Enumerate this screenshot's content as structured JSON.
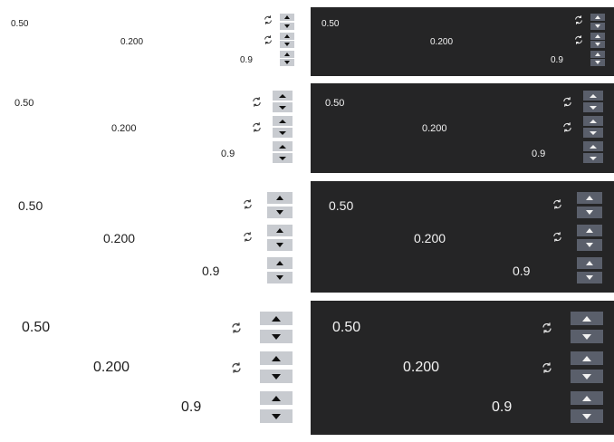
{
  "rows": [
    {
      "fields": [
        {
          "value": "0.50",
          "reset_icon": "reset-arrows-icon"
        },
        {
          "value": "0.200",
          "reset_icon": "reset-arrows-icon"
        },
        {
          "value": "0.9",
          "reset_icon": null
        }
      ]
    },
    {
      "fields": [
        {
          "value": "0.50",
          "reset_icon": "reset-arrows-icon"
        },
        {
          "value": "0.200",
          "reset_icon": "reset-arrows-icon"
        },
        {
          "value": "0.9",
          "reset_icon": null
        }
      ]
    },
    {
      "fields": [
        {
          "value": "0.50",
          "reset_icon": "reset-arrows-icon"
        },
        {
          "value": "0.200",
          "reset_icon": "reset-arrows-icon"
        },
        {
          "value": "0.9",
          "reset_icon": null
        }
      ]
    },
    {
      "fields": [
        {
          "value": "0.50",
          "reset_icon": "reset-arrows-icon"
        },
        {
          "value": "0.200",
          "reset_icon": "reset-arrows-icon"
        },
        {
          "value": "0.9",
          "reset_icon": null
        }
      ]
    }
  ],
  "themes": {
    "light": {
      "background": "#ffffff",
      "text": "#1e1e1e",
      "spin_button": "#c8cbd0"
    },
    "dark": {
      "background": "#252526",
      "text": "#f2f2f2",
      "spin_button": "#5a5f6b"
    }
  },
  "icons": {
    "increment": "triangle-up-icon",
    "decrement": "triangle-down-icon",
    "reset": "reset-arrows-icon"
  }
}
